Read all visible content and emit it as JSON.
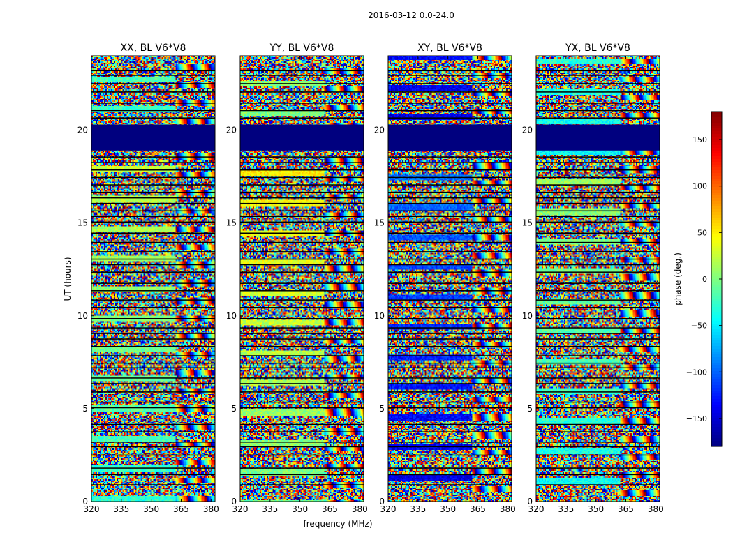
{
  "figure": {
    "suptitle": "2016-03-12 0.0-24.0",
    "xlabel": "frequency (MHz)",
    "ylabel": "UT (hours)",
    "colorbar_label": "phase (deg.)"
  },
  "chart_data": {
    "type": "heatmap",
    "colormap": "jet",
    "x_range": [
      320,
      382
    ],
    "y_range": [
      0,
      24
    ],
    "x_ticks": [
      320,
      335,
      350,
      365,
      380
    ],
    "y_ticks": [
      0,
      5,
      10,
      15,
      20
    ],
    "color_range": [
      -180,
      180
    ],
    "color_ticks": [
      -150,
      -100,
      -50,
      0,
      50,
      100,
      150
    ],
    "colors": {
      "flagged": "#00007f",
      "gap": "#000000"
    },
    "panels": [
      {
        "title": "XX, BL V6*V8",
        "bias": 0,
        "pattern": "mixed"
      },
      {
        "title": "YY, BL V6*V8",
        "bias": 25,
        "pattern": "mixed"
      },
      {
        "title": "XY, BL V6*V8",
        "bias": -120,
        "pattern": "noise"
      },
      {
        "title": "YX, BL V6*V8",
        "bias": -15,
        "pattern": "mixed"
      }
    ],
    "flagged_ut_bands": [
      {
        "from": 18.9,
        "to": 20.3,
        "phase": -180
      }
    ],
    "gap_ut_lines": [
      0.9,
      1.45,
      1.8,
      2.5,
      2.95,
      3.2,
      3.75,
      4.15,
      5.05,
      5.35,
      5.9,
      6.35,
      6.65,
      7.2,
      7.45,
      7.85,
      8.35,
      8.75,
      9.05,
      9.35,
      9.85,
      10.45,
      10.85,
      11.35,
      11.75,
      12.35,
      12.75,
      13.05,
      13.45,
      13.95,
      14.45,
      15.05,
      15.35,
      15.65,
      16.05,
      16.35,
      16.65,
      17.05,
      17.45,
      17.85,
      18.25,
      18.55,
      20.65,
      21.05,
      21.45,
      22.05,
      22.5,
      22.95,
      23.2
    ]
  }
}
